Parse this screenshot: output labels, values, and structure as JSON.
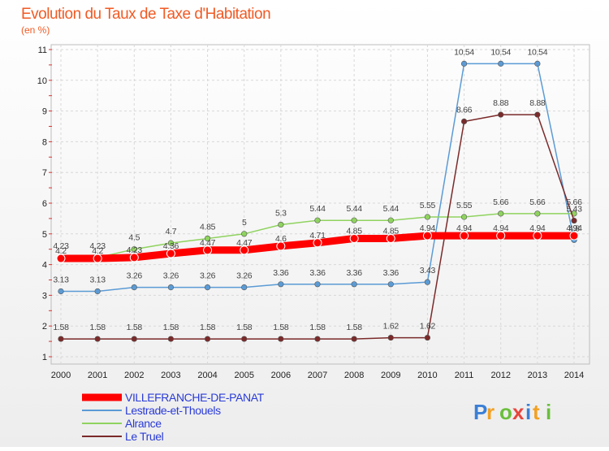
{
  "header": {
    "title": "Evolution du Taux de Taxe d'Habitation",
    "subtitle": "(en %)"
  },
  "logo": {
    "text": "Proxiti"
  },
  "chart_data": {
    "type": "line",
    "title": "Evolution du Taux de Taxe d'Habitation",
    "subtitle": "(en %)",
    "xlabel": "",
    "ylabel": "",
    "x": [
      "2000",
      "2001",
      "2002",
      "2003",
      "2004",
      "2005",
      "2006",
      "2007",
      "2008",
      "2009",
      "2010",
      "2011",
      "2012",
      "2013",
      "2014"
    ],
    "ylim": [
      1,
      11
    ],
    "yticks": [
      "1",
      "2",
      "3",
      "4",
      "5",
      "6",
      "7",
      "8",
      "9",
      "10",
      "11"
    ],
    "grid": true,
    "legend_position": "bottom-left",
    "series": [
      {
        "name": "VILLEFRANCHE-DE-PANAT",
        "color": "#ff0000",
        "values": [
          4.2,
          4.2,
          4.23,
          4.36,
          4.47,
          4.47,
          4.6,
          4.71,
          4.85,
          4.85,
          4.94,
          4.94,
          4.94,
          4.94,
          4.94
        ],
        "labels": [
          "4.2",
          "4.2",
          "4.23",
          "4.36",
          "4.47",
          "4.47",
          "4.6",
          "4.71",
          "4.85",
          "4.85",
          "4.94",
          "4.94",
          "4.94",
          "4.94",
          "4.94"
        ]
      },
      {
        "name": "Lestrade-et-Thouels",
        "color": "#5b9bd5",
        "values": [
          3.13,
          3.13,
          3.26,
          3.26,
          3.26,
          3.26,
          3.36,
          3.36,
          3.36,
          3.36,
          3.43,
          10.54,
          10.54,
          10.54,
          4.8
        ],
        "labels": [
          "3.13",
          "3.13",
          "3.26",
          "3.26",
          "3.26",
          "3.26",
          "3.36",
          "3.36",
          "3.36",
          "3.36",
          "3.43",
          "10.54",
          "10.54",
          "10.54",
          "4.8"
        ]
      },
      {
        "name": "Alrance",
        "color": "#8fd35f",
        "values": [
          4.23,
          4.23,
          4.5,
          4.7,
          4.85,
          5,
          5.3,
          5.44,
          5.44,
          5.44,
          5.55,
          5.55,
          5.66,
          5.66,
          5.66
        ],
        "labels": [
          "4.23",
          "4.23",
          "4.5",
          "4.7",
          "4.85",
          "5",
          "5.3",
          "5.44",
          "5.44",
          "5.44",
          "5.55",
          "5.55",
          "5.66",
          "5.66",
          "5.66"
        ]
      },
      {
        "name": "Le Truel",
        "color": "#7b2a2a",
        "values": [
          1.58,
          1.58,
          1.58,
          1.58,
          1.58,
          1.58,
          1.58,
          1.58,
          1.58,
          1.62,
          1.62,
          8.66,
          8.88,
          8.88,
          5.43
        ],
        "labels": [
          "1.58",
          "1.58",
          "1.58",
          "1.58",
          "1.58",
          "1.58",
          "1.58",
          "1.58",
          "1.58",
          "1.62",
          "1.62",
          "8.66",
          "8.88",
          "8.88",
          "5.43"
        ]
      }
    ]
  }
}
